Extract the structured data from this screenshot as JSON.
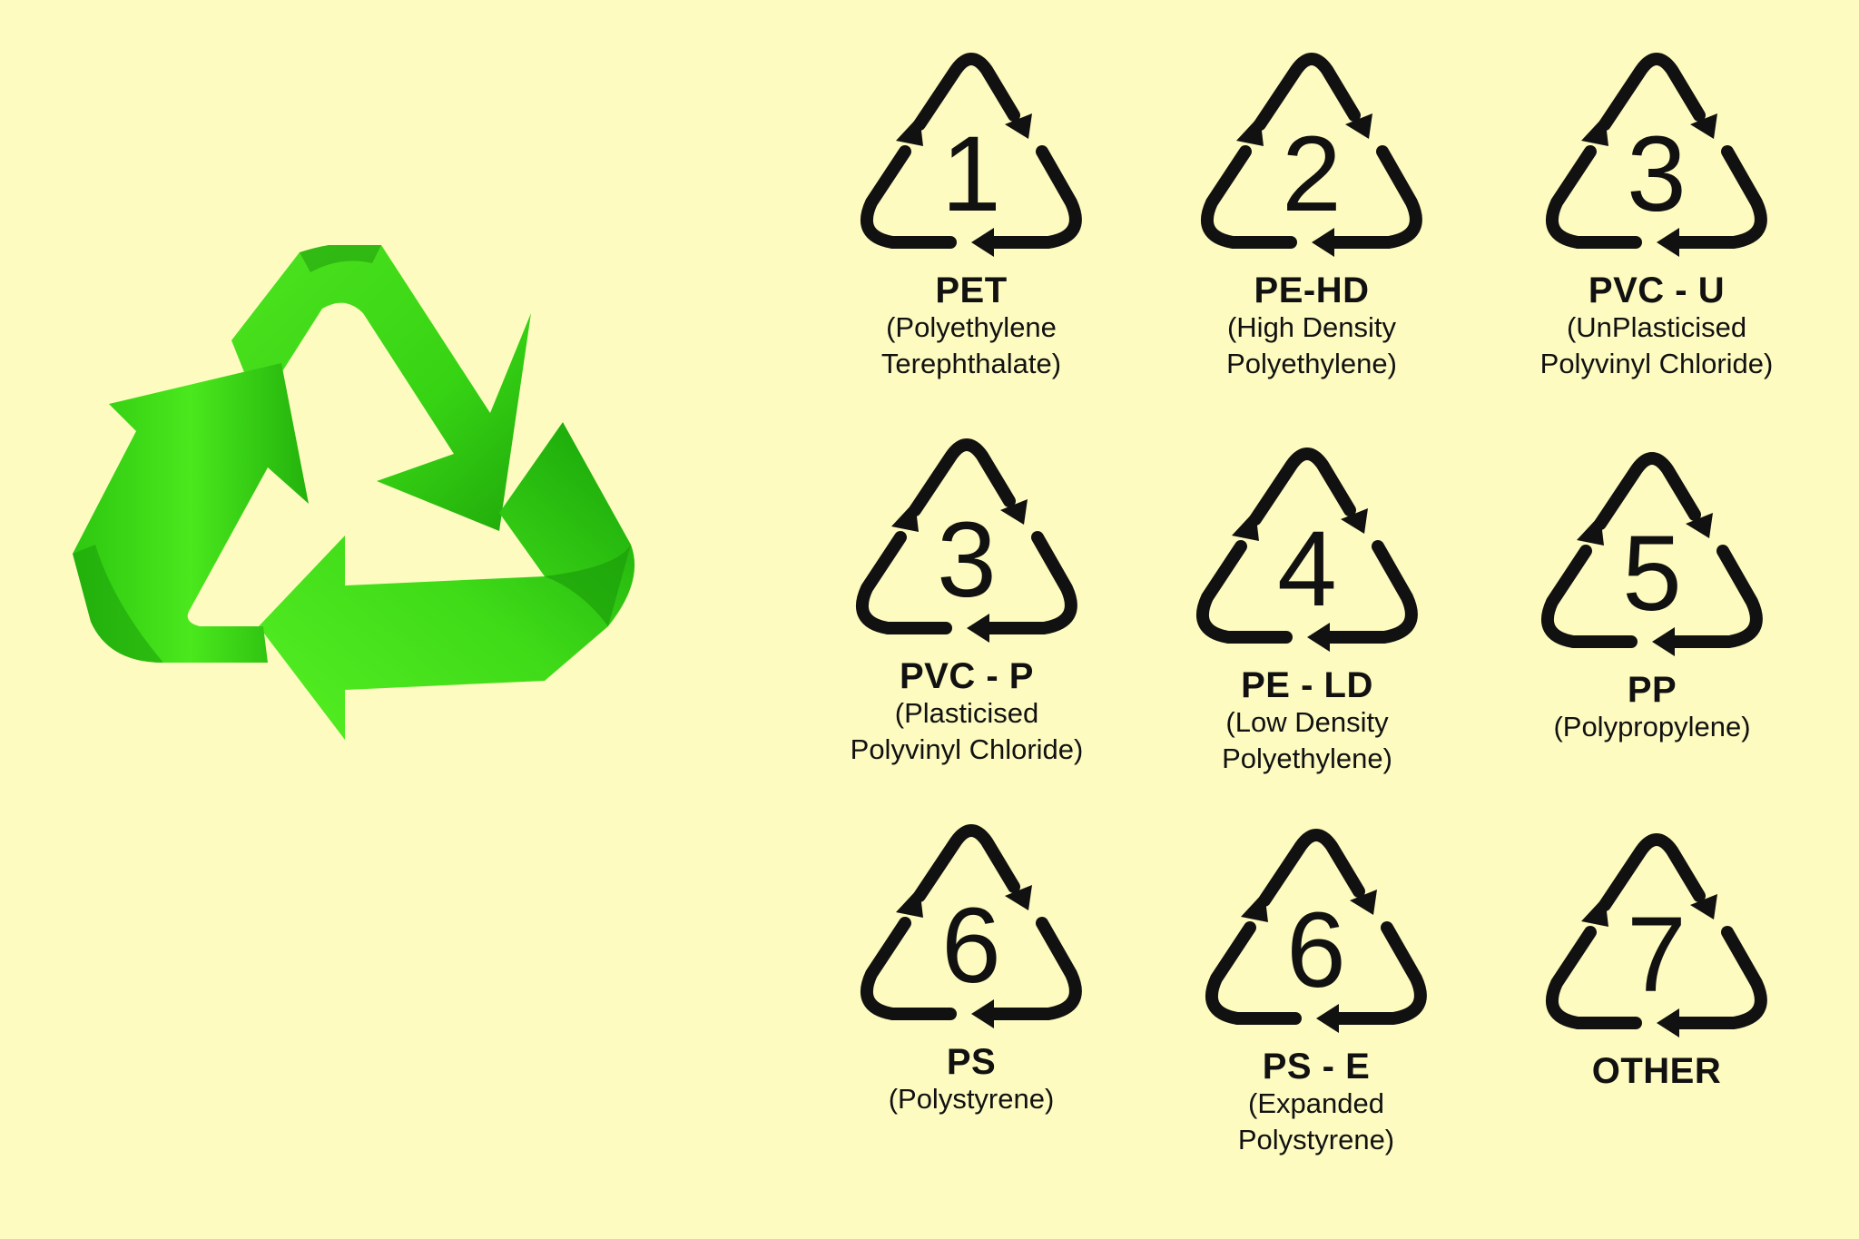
{
  "colors": {
    "background": "#fdfbc0",
    "arrow_green_light": "#3fe21a",
    "arrow_green_dark": "#1faa0c",
    "symbol_black": "#111111"
  },
  "icons": {
    "big_symbol": "recycle-icon",
    "code_symbol": "resin-code-triangle-icon"
  },
  "codes": [
    {
      "num": "1",
      "abbr": "PET",
      "desc": "(Polyethylene\nTerephthalate)"
    },
    {
      "num": "2",
      "abbr": "PE-HD",
      "desc": "(High Density\nPolyethylene)"
    },
    {
      "num": "3",
      "abbr": "PVC - U",
      "desc": "(UnPlasticised\nPolyvinyl Chloride)"
    },
    {
      "num": "3",
      "abbr": "PVC - P",
      "desc": "(Plasticised\nPolyvinyl Chloride)"
    },
    {
      "num": "4",
      "abbr": "PE - LD",
      "desc": "(Low Density\nPolyethylene)"
    },
    {
      "num": "5",
      "abbr": "PP",
      "desc": "(Polypropylene)"
    },
    {
      "num": "6",
      "abbr": "PS",
      "desc": "(Polystyrene)"
    },
    {
      "num": "6",
      "abbr": "PS - E",
      "desc": "(Expanded\nPolystyrene)"
    },
    {
      "num": "7",
      "abbr": "OTHER",
      "desc": ""
    }
  ]
}
